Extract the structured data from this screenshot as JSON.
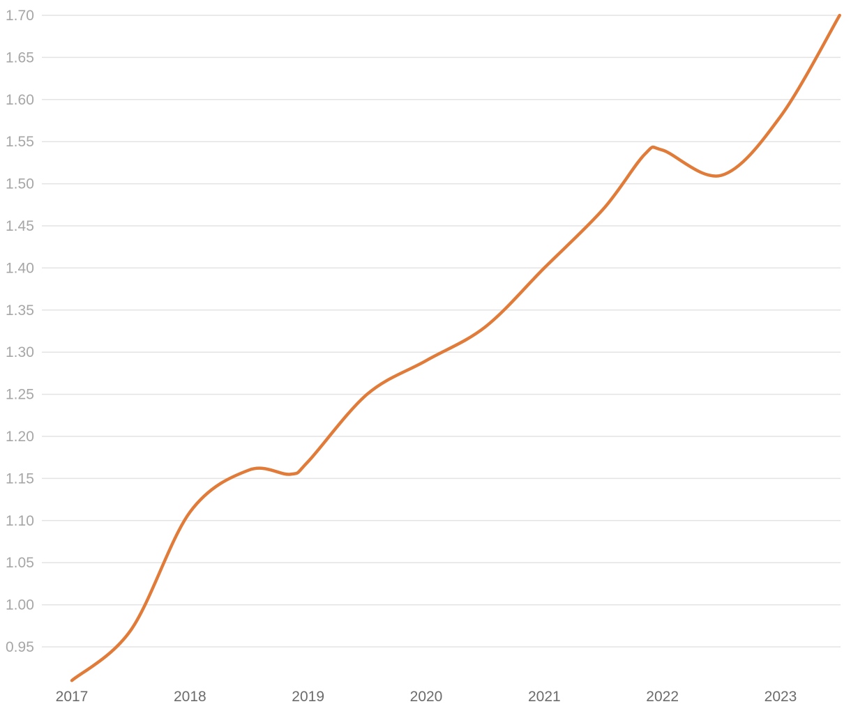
{
  "chart_data": {
    "type": "line",
    "title": "",
    "xlabel": "",
    "ylabel": "",
    "x_ticks": [
      "2017",
      "2018",
      "2019",
      "2020",
      "2021",
      "2022",
      "2023"
    ],
    "y_ticks": [
      "0.95",
      "1.00",
      "1.05",
      "1.10",
      "1.15",
      "1.20",
      "1.25",
      "1.30",
      "1.35",
      "1.40",
      "1.45",
      "1.50",
      "1.55",
      "1.60",
      "1.65",
      "1.70"
    ],
    "xlim": [
      2017,
      2023
    ],
    "ylim": [
      0.91,
      1.7
    ],
    "grid": true,
    "legend": "none",
    "series": [
      {
        "color": "#e07b39",
        "points": [
          {
            "x": 2017.0,
            "y": 0.91
          },
          {
            "x": 2017.5,
            "y": 0.97
          },
          {
            "x": 2018.0,
            "y": 1.11
          },
          {
            "x": 2018.5,
            "y": 1.16
          },
          {
            "x": 2018.85,
            "y": 1.155
          },
          {
            "x": 2019.0,
            "y": 1.17
          },
          {
            "x": 2019.5,
            "y": 1.25
          },
          {
            "x": 2020.0,
            "y": 1.29
          },
          {
            "x": 2020.5,
            "y": 1.33
          },
          {
            "x": 2021.0,
            "y": 1.4
          },
          {
            "x": 2021.5,
            "y": 1.47
          },
          {
            "x": 2021.85,
            "y": 1.535
          },
          {
            "x": 2022.0,
            "y": 1.54
          },
          {
            "x": 2022.5,
            "y": 1.51
          },
          {
            "x": 2023.0,
            "y": 1.58
          },
          {
            "x": 2023.5,
            "y": 1.7
          }
        ]
      }
    ]
  }
}
